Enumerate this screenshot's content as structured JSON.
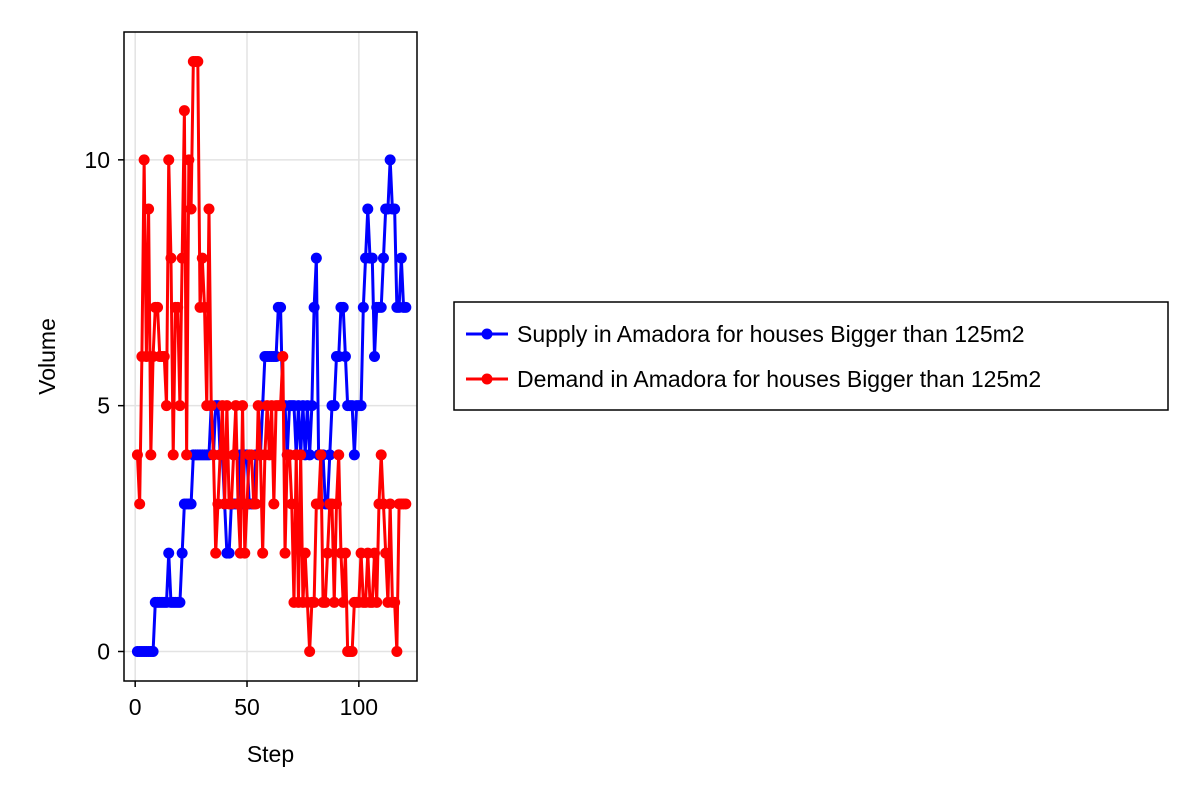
{
  "chart_data": {
    "type": "line",
    "title": "",
    "xlabel": "Step",
    "ylabel": "Volume",
    "xlim": [
      -5,
      126
    ],
    "ylim": [
      -0.6,
      12.6
    ],
    "x_ticks": [
      0,
      50,
      100
    ],
    "y_ticks": [
      0,
      5,
      10
    ],
    "x_tick_labels": [
      "0",
      "50",
      "100"
    ],
    "y_tick_labels": [
      "0",
      "5",
      "10"
    ],
    "grid": true,
    "legend_position": "right",
    "series": [
      {
        "name": "Supply in Amadora for houses Bigger than 125m2",
        "color": "#0000ff",
        "x": [
          1,
          2,
          3,
          4,
          5,
          6,
          7,
          8,
          9,
          10,
          11,
          12,
          13,
          14,
          15,
          16,
          17,
          18,
          19,
          20,
          21,
          22,
          23,
          24,
          25,
          26,
          27,
          28,
          29,
          30,
          31,
          32,
          33,
          34,
          35,
          36,
          37,
          38,
          39,
          40,
          41,
          42,
          43,
          44,
          45,
          46,
          47,
          48,
          49,
          50,
          51,
          52,
          53,
          54,
          55,
          56,
          57,
          58,
          59,
          60,
          61,
          62,
          63,
          64,
          65,
          66,
          67,
          68,
          69,
          70,
          71,
          72,
          73,
          74,
          75,
          76,
          77,
          78,
          79,
          80,
          81,
          82,
          83,
          84,
          85,
          86,
          87,
          88,
          89,
          90,
          91,
          92,
          93,
          94,
          95,
          96,
          97,
          98,
          99,
          100,
          101,
          102,
          103,
          104,
          105,
          106,
          107,
          108,
          109,
          110,
          111,
          112,
          113,
          114,
          115,
          116,
          117,
          118,
          119,
          120,
          121
        ],
        "values": [
          0,
          0,
          0,
          0,
          0,
          0,
          0,
          0,
          1,
          1,
          1,
          1,
          1,
          1,
          2,
          1,
          1,
          1,
          1,
          1,
          2,
          3,
          3,
          3,
          3,
          4,
          4,
          4,
          4,
          4,
          4,
          4,
          4,
          5,
          4,
          5,
          5,
          4,
          4,
          3,
          2,
          2,
          3,
          3,
          3,
          3,
          4,
          3,
          4,
          4,
          3,
          3,
          3,
          4,
          4,
          4,
          5,
          6,
          6,
          6,
          6,
          6,
          6,
          7,
          7,
          5,
          5,
          4,
          5,
          5,
          5,
          4,
          5,
          4,
          5,
          4,
          5,
          4,
          5,
          7,
          8,
          4,
          4,
          4,
          3,
          3,
          4,
          5,
          5,
          6,
          6,
          7,
          7,
          6,
          5,
          5,
          5,
          4,
          5,
          5,
          5,
          7,
          8,
          9,
          8,
          8,
          6,
          7,
          7,
          7,
          8,
          9,
          9,
          10,
          9,
          9,
          7,
          7,
          8,
          7,
          7
        ]
      },
      {
        "name": "Demand in Amadora for houses Bigger than 125m2",
        "color": "#ff0000",
        "x": [
          1,
          2,
          3,
          4,
          5,
          6,
          7,
          8,
          9,
          10,
          11,
          12,
          13,
          14,
          15,
          16,
          17,
          18,
          19,
          20,
          21,
          22,
          23,
          24,
          25,
          26,
          27,
          28,
          29,
          30,
          31,
          32,
          33,
          34,
          35,
          36,
          37,
          38,
          39,
          40,
          41,
          42,
          43,
          44,
          45,
          46,
          47,
          48,
          49,
          50,
          51,
          52,
          53,
          54,
          55,
          56,
          57,
          58,
          59,
          60,
          61,
          62,
          63,
          64,
          65,
          66,
          67,
          68,
          69,
          70,
          71,
          72,
          73,
          74,
          75,
          76,
          77,
          78,
          79,
          80,
          81,
          82,
          83,
          84,
          85,
          86,
          87,
          88,
          89,
          90,
          91,
          92,
          93,
          94,
          95,
          96,
          97,
          98,
          99,
          100,
          101,
          102,
          103,
          104,
          105,
          106,
          107,
          108,
          109,
          110,
          111,
          112,
          113,
          114,
          115,
          116,
          117,
          118,
          119,
          120,
          121
        ],
        "values": [
          4,
          3,
          6,
          10,
          6,
          9,
          4,
          6,
          7,
          7,
          6,
          6,
          6,
          5,
          10,
          8,
          4,
          7,
          7,
          5,
          8,
          11,
          4,
          10,
          9,
          12,
          12,
          12,
          7,
          8,
          7,
          5,
          9,
          5,
          4,
          2,
          3,
          4,
          5,
          3,
          5,
          3,
          3,
          4,
          5,
          3,
          2,
          5,
          2,
          3,
          4,
          4,
          3,
          3,
          5,
          4,
          2,
          4,
          5,
          4,
          5,
          3,
          5,
          5,
          5,
          6,
          2,
          4,
          4,
          3,
          1,
          4,
          1,
          4,
          1,
          2,
          1,
          0,
          1,
          1,
          3,
          3,
          4,
          1,
          1,
          2,
          3,
          3,
          1,
          3,
          4,
          2,
          1,
          2,
          0,
          0,
          0,
          1,
          1,
          1,
          2,
          1,
          1,
          2,
          1,
          1,
          2,
          1,
          3,
          4,
          3,
          2,
          1,
          3,
          1,
          1,
          0,
          3,
          3,
          3,
          3
        ]
      }
    ]
  }
}
